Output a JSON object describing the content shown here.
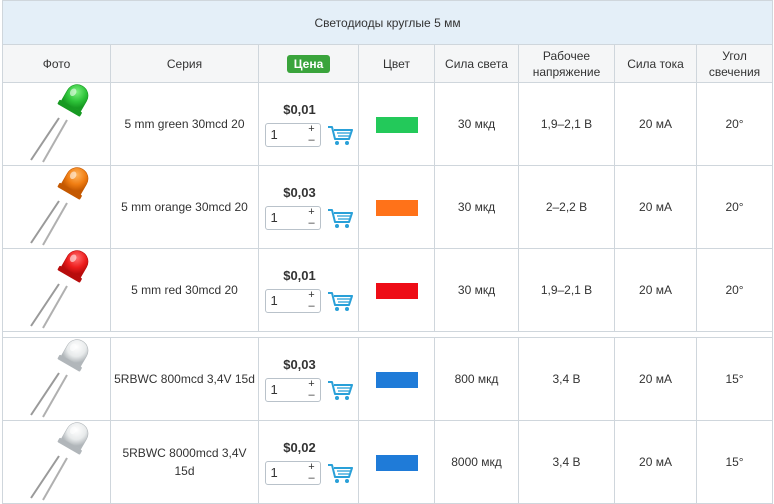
{
  "table": {
    "title": "Светодиоды круглые 5 мм",
    "headers": {
      "photo": "Фото",
      "series": "Серия",
      "price": "Цена",
      "color": "Цвет",
      "luminosity": "Сила света",
      "voltage": "Рабочее напряжение",
      "current": "Сила тока",
      "angle": "Угол свечения"
    },
    "colors": {
      "header_bg": "#e4eff8",
      "price_badge": "#3aa43c",
      "cart_icon": "#29a0d8",
      "border": "#cfd6dc"
    },
    "rows": [
      {
        "photo_icon": "led-green-icon",
        "series": "5 mm green 30mcd 20",
        "price": "$0,01",
        "qty": "1",
        "swatch": "#23c95a",
        "luminosity": "30 мкд",
        "voltage": "1,9–2,1 В",
        "current": "20 мА",
        "angle": "20°"
      },
      {
        "photo_icon": "led-orange-icon",
        "series": "5 mm orange 30mcd 20",
        "price": "$0,03",
        "qty": "1",
        "swatch": "#ff7219",
        "luminosity": "30 мкд",
        "voltage": "2–2,2 В",
        "current": "20 мА",
        "angle": "20°"
      },
      {
        "photo_icon": "led-red-icon",
        "series": "5 mm red 30mcd 20",
        "price": "$0,01",
        "qty": "1",
        "swatch": "#ee0c16",
        "luminosity": "30 мкд",
        "voltage": "1,9–2,1 В",
        "current": "20 мА",
        "angle": "20°"
      },
      {
        "photo_icon": "led-clear-icon",
        "series": "5RBWC 800mcd 3,4V 15d",
        "price": "$0,03",
        "qty": "1",
        "swatch": "#1f7bd8",
        "luminosity": "800 мкд",
        "voltage": "3,4 В",
        "current": "20 мА",
        "angle": "15°"
      },
      {
        "photo_icon": "led-clear-icon",
        "series": "5RBWC 8000mcd 3,4V 15d",
        "price": "$0,02",
        "qty": "1",
        "swatch": "#1f7bd8",
        "luminosity": "8000 мкд",
        "voltage": "3,4 В",
        "current": "20 мА",
        "angle": "15°"
      }
    ],
    "stepper": {
      "plus": "+",
      "minus": "–"
    }
  }
}
